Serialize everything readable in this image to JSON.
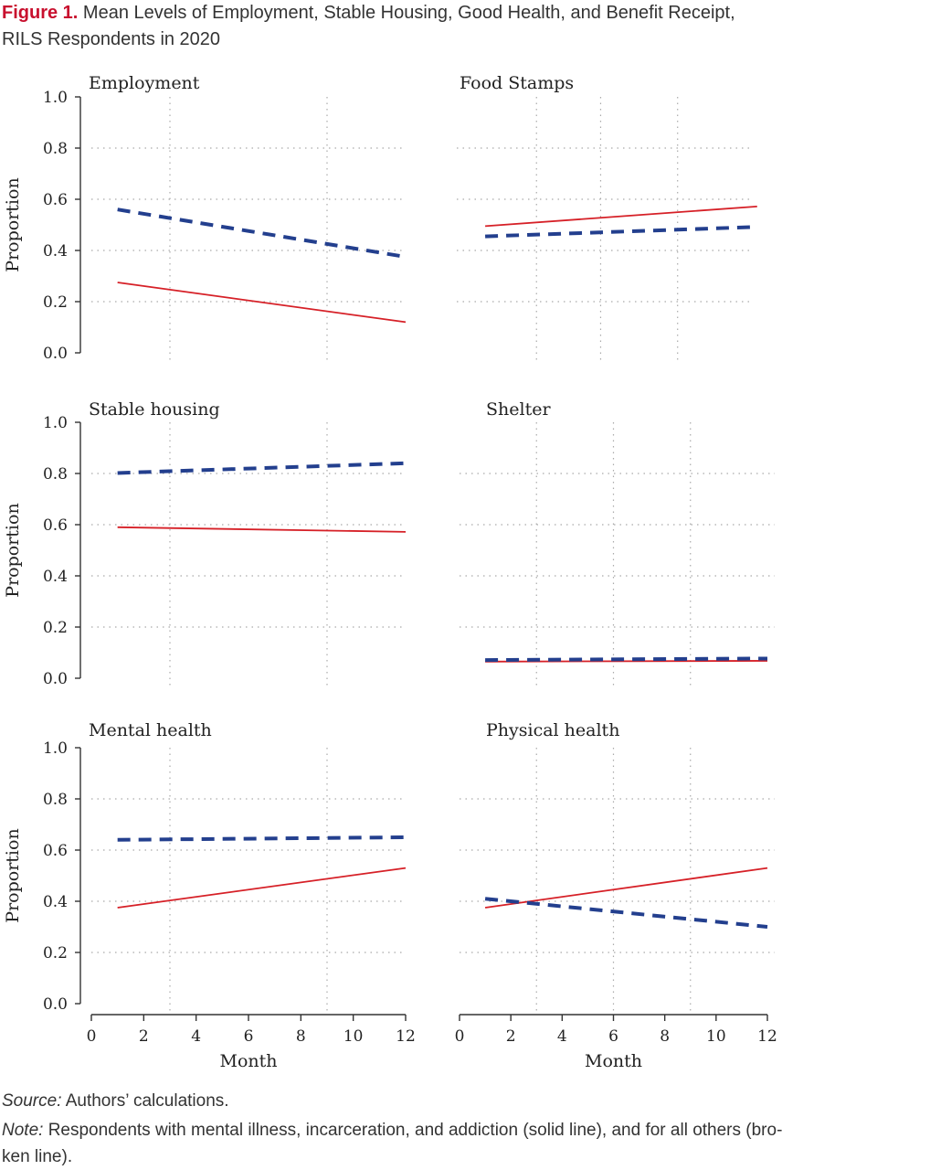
{
  "figure": {
    "label": "Figure 1.",
    "title_line1": "Mean Levels of Employment, Stable Housing, Good Health, and Benefit Receipt,",
    "title_line2": "RILS Respondents in 2020"
  },
  "source": {
    "label": "Source:",
    "text": "Authors’ calculations."
  },
  "note": {
    "label": "Note:",
    "text": "Respondents with mental illness, incarceration, and addiction (solid line), and for all others (bro-",
    "text2": "ken line)."
  },
  "colors": {
    "solid": "#d62027",
    "broken": "#233f8e",
    "axis": "#333333",
    "grid": "#aaaaaa"
  },
  "chart_data": [
    {
      "type": "line",
      "title": "Employment",
      "xlabel": "",
      "ylabel": "Proportion",
      "xlim": [
        0,
        12
      ],
      "ylim": [
        0,
        1
      ],
      "grid": true,
      "yticks": [
        "0.0",
        "0.2",
        "0.4",
        "0.6",
        "0.8",
        "1.0"
      ],
      "xticks": [],
      "series": [
        {
          "style": "solid",
          "x": [
            1,
            12
          ],
          "y": [
            0.275,
            0.12
          ]
        },
        {
          "style": "broken",
          "x": [
            1,
            12
          ],
          "y": [
            0.56,
            0.375
          ]
        }
      ]
    },
    {
      "type": "line",
      "title": "Food Stamps",
      "xlabel": "",
      "ylabel": "",
      "xlim": [
        0,
        12
      ],
      "ylim": [
        0,
        1
      ],
      "grid": true,
      "yticks": [],
      "xticks": [],
      "series": [
        {
          "style": "solid",
          "x": [
            1,
            11.6
          ],
          "y": [
            0.495,
            0.572
          ]
        },
        {
          "style": "broken",
          "x": [
            1,
            11.6
          ],
          "y": [
            0.455,
            0.492
          ]
        }
      ]
    },
    {
      "type": "line",
      "title": "Stable housing",
      "xlabel": "",
      "ylabel": "Proportion",
      "xlim": [
        0,
        12
      ],
      "ylim": [
        0,
        1
      ],
      "grid": true,
      "yticks": [
        "0.0",
        "0.2",
        "0.4",
        "0.6",
        "0.8",
        "1.0"
      ],
      "xticks": [],
      "series": [
        {
          "style": "solid",
          "x": [
            1,
            12
          ],
          "y": [
            0.59,
            0.572
          ]
        },
        {
          "style": "broken",
          "x": [
            1,
            12
          ],
          "y": [
            0.802,
            0.84
          ]
        }
      ]
    },
    {
      "type": "line",
      "title": "Shelter",
      "xlabel": "",
      "ylabel": "",
      "xlim": [
        0,
        12
      ],
      "ylim": [
        0,
        1
      ],
      "grid": true,
      "yticks": [],
      "xticks": [],
      "series": [
        {
          "style": "solid",
          "x": [
            1,
            12
          ],
          "y": [
            0.065,
            0.068
          ]
        },
        {
          "style": "broken",
          "x": [
            1,
            12
          ],
          "y": [
            0.071,
            0.077
          ]
        }
      ]
    },
    {
      "type": "line",
      "title": "Mental health",
      "xlabel": "Month",
      "ylabel": "Proportion",
      "xlim": [
        0,
        12
      ],
      "ylim": [
        0,
        1
      ],
      "grid": true,
      "yticks": [
        "0.0",
        "0.2",
        "0.4",
        "0.6",
        "0.8",
        "1.0"
      ],
      "xticks": [
        "0",
        "2",
        "4",
        "6",
        "8",
        "10",
        "12"
      ],
      "series": [
        {
          "style": "solid",
          "x": [
            1,
            12
          ],
          "y": [
            0.375,
            0.53
          ]
        },
        {
          "style": "broken",
          "x": [
            1,
            12
          ],
          "y": [
            0.64,
            0.65
          ]
        }
      ]
    },
    {
      "type": "line",
      "title": "Physical health",
      "xlabel": "Month",
      "ylabel": "",
      "xlim": [
        0,
        12
      ],
      "ylim": [
        0,
        1
      ],
      "grid": true,
      "yticks": [],
      "xticks": [
        "0",
        "2",
        "4",
        "6",
        "8",
        "10",
        "12"
      ],
      "series": [
        {
          "style": "solid",
          "x": [
            1,
            12
          ],
          "y": [
            0.375,
            0.53
          ]
        },
        {
          "style": "broken",
          "x": [
            1,
            12
          ],
          "y": [
            0.41,
            0.3
          ]
        }
      ]
    }
  ]
}
